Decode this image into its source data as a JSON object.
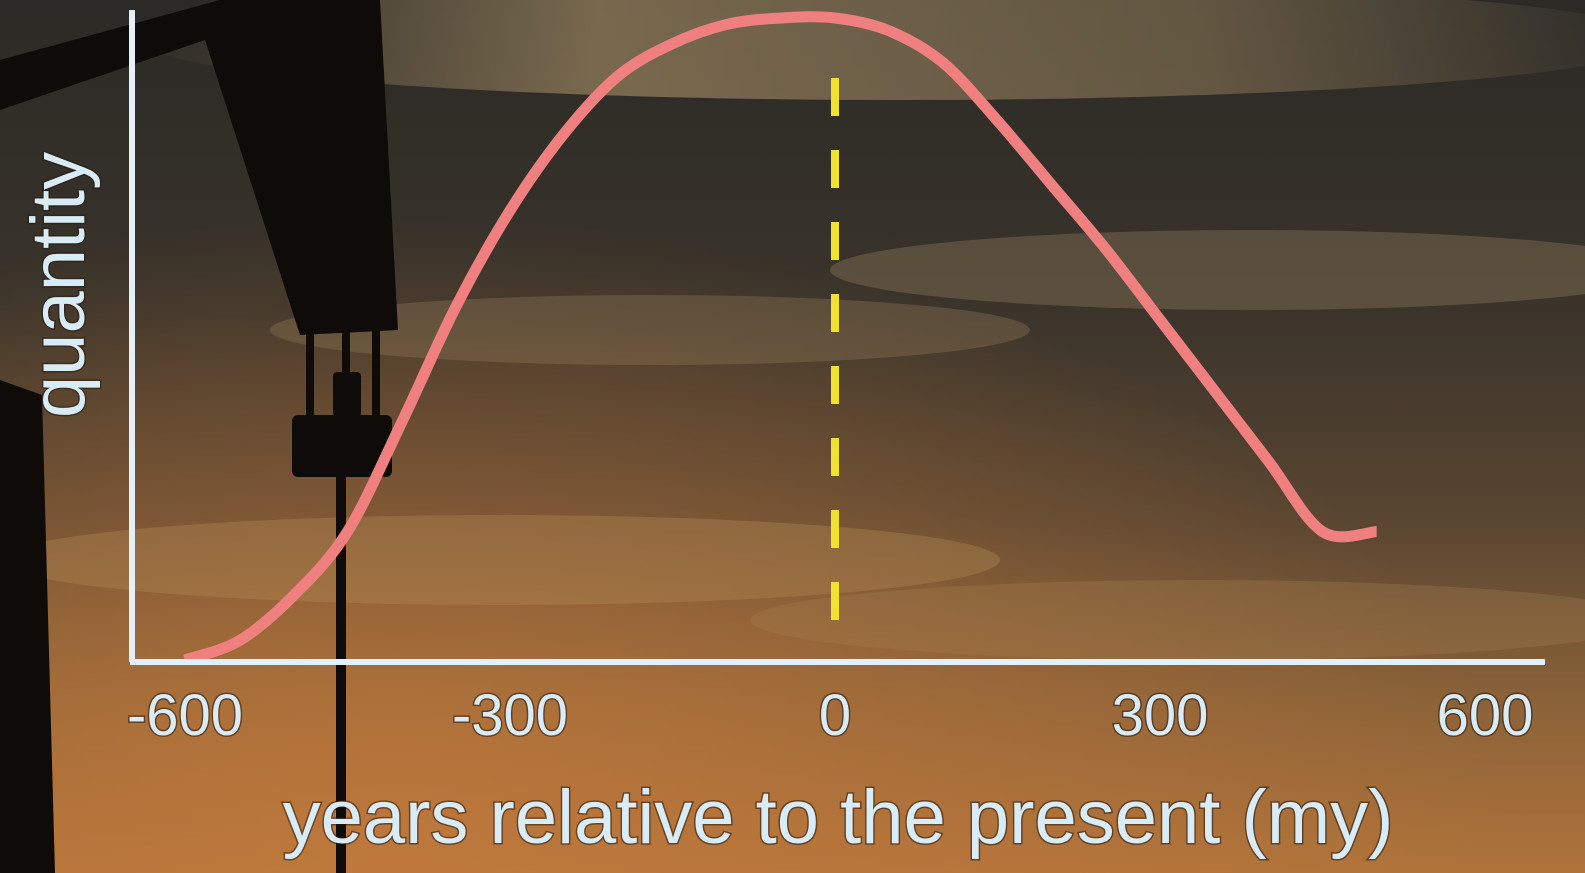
{
  "chart_data": {
    "type": "line",
    "title": "",
    "xlabel": "years relative to the present (my)",
    "ylabel": "quantity",
    "xlim": [
      -600,
      600
    ],
    "ylim": [
      0,
      1
    ],
    "grid": false,
    "x_ticks": [
      "-600",
      "-300",
      "0",
      "300",
      "600"
    ],
    "series": [
      {
        "x": [
          -600,
          -550,
          -500,
          -450,
          -400,
          -350,
          -300,
          -250,
          -200,
          -150,
          -100,
          -50,
          0,
          50,
          100,
          150,
          200,
          250,
          300,
          350,
          400,
          450,
          500
        ],
        "y": [
          0.0,
          0.03,
          0.1,
          0.2,
          0.37,
          0.55,
          0.7,
          0.82,
          0.91,
          0.96,
          0.99,
          1.0,
          1.0,
          0.98,
          0.93,
          0.84,
          0.74,
          0.64,
          0.53,
          0.42,
          0.31,
          0.2,
          0.2
        ]
      }
    ],
    "reference_line": {
      "x": 0,
      "style": "dashed"
    },
    "colors": {
      "curve": "#f08080",
      "reference_line": "#f2e230",
      "axes": "#e4f0f8",
      "text": "#d8ecf7"
    }
  }
}
